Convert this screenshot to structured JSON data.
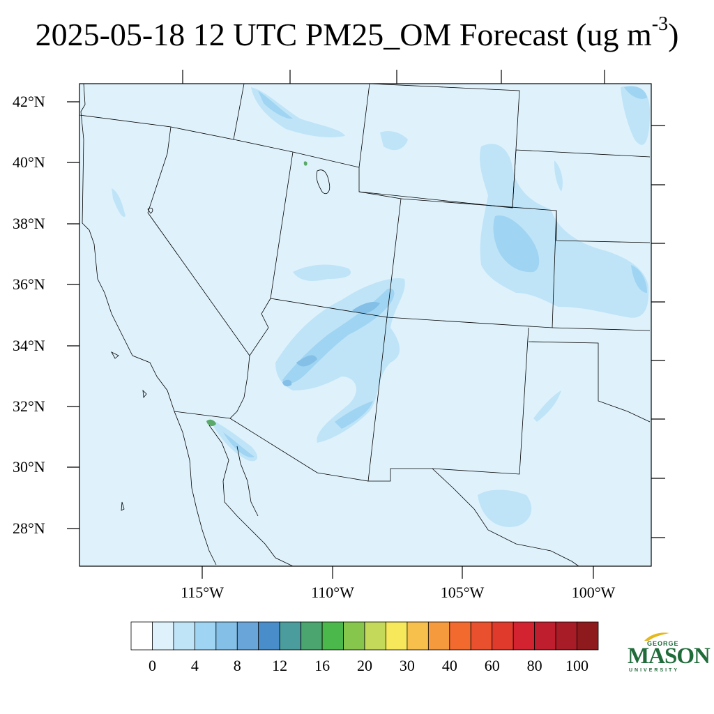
{
  "title": {
    "main": "2025-05-18 12 UTC PM25_OM Forecast (ug m",
    "superscript": "-3",
    "close": ")"
  },
  "map": {
    "latitude_labels": [
      "42°N",
      "40°N",
      "38°N",
      "36°N",
      "34°N",
      "32°N",
      "30°N",
      "28°N"
    ],
    "longitude_labels": [
      "115°W",
      "110°W",
      "105°W",
      "100°W"
    ],
    "background_color": "#dff2fc",
    "contour_colors": {
      "light": "#bfe4f7",
      "mid": "#9fd4f2",
      "deep": "#83bfe6",
      "green": "#5aa86a"
    }
  },
  "colorbar": {
    "colors": [
      "#ffffff",
      "#dff2fc",
      "#bfe4f7",
      "#9fd4f2",
      "#83bfe6",
      "#6aa5da",
      "#4a8dcb",
      "#4b9c9c",
      "#4aa56e",
      "#4bb84b",
      "#86c64c",
      "#c4d95a",
      "#f6e85a",
      "#f7bf4c",
      "#f69b3d",
      "#f26a2e",
      "#e9502d",
      "#df3a2b",
      "#d32331",
      "#bf1e2e",
      "#a81c28",
      "#8e1a1d"
    ],
    "labels": [
      "0",
      "4",
      "8",
      "12",
      "16",
      "20",
      "30",
      "40",
      "60",
      "80",
      "100"
    ]
  },
  "logo": {
    "line1": "GEORGE",
    "line2": "MASON",
    "line3": "UNIVERSITY"
  }
}
